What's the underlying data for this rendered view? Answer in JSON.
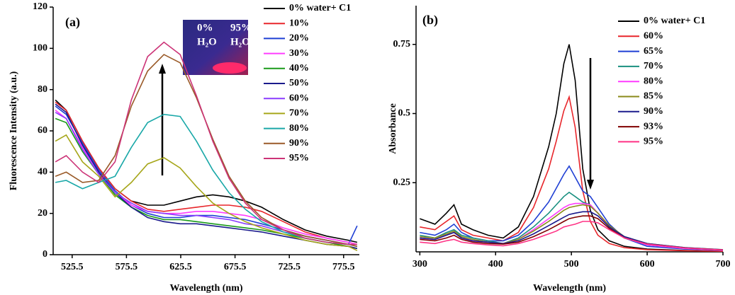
{
  "chart_data": [
    {
      "type": "line",
      "panel_label": "(a)",
      "x_label": "Wavelength (nm)",
      "y_label": "Fluorescence Intensity (a.u.)",
      "inset": {
        "left": [
          "0%",
          "H₂O"
        ],
        "right": [
          "95%",
          "H₂O"
        ]
      },
      "legend": "upper right",
      "xlim": [
        508,
        790
      ],
      "xticks": [
        525.5,
        575.5,
        625.5,
        675.5,
        725.5,
        775.5
      ],
      "ylim": [
        0,
        120
      ],
      "yticks": [
        0,
        20,
        40,
        60,
        80,
        100,
        120
      ],
      "x": [
        510,
        520,
        535,
        550,
        565,
        580,
        595,
        610,
        625,
        640,
        655,
        670,
        685,
        700,
        720,
        740,
        760,
        780,
        788
      ],
      "series": [
        {
          "name": "0% water+ C1",
          "color": "#000000",
          "values": [
            75,
            70,
            55,
            42,
            32,
            26,
            24,
            24,
            26,
            28,
            29,
            28,
            26,
            23,
            17,
            12,
            9,
            7,
            6
          ]
        },
        {
          "name": "10%",
          "color": "#e8262b",
          "values": [
            74,
            70,
            55,
            42,
            32,
            26,
            22,
            21,
            22,
            23,
            24,
            24,
            23,
            21,
            16,
            11,
            8,
            6,
            5
          ]
        },
        {
          "name": "20%",
          "color": "#1f3fd4",
          "values": [
            72,
            68,
            54,
            41,
            31,
            24,
            20,
            18,
            18,
            19,
            19,
            18,
            17,
            15,
            12,
            9,
            7,
            5,
            14
          ]
        },
        {
          "name": "30%",
          "color": "#ff3cff",
          "values": [
            70,
            66,
            52,
            40,
            30,
            24,
            21,
            20,
            20,
            21,
            21,
            20,
            19,
            17,
            13,
            10,
            8,
            6,
            5
          ]
        },
        {
          "name": "40%",
          "color": "#1a9a1a",
          "values": [
            66,
            64,
            50,
            39,
            29,
            23,
            19,
            17,
            17,
            16,
            15,
            14,
            13,
            12,
            10,
            8,
            6,
            4,
            3
          ]
        },
        {
          "name": "50%",
          "color": "#1a1a8c",
          "values": [
            73,
            69,
            53,
            40,
            30,
            23,
            18,
            16,
            15,
            15,
            14,
            13,
            12,
            11,
            9,
            7,
            5,
            4,
            3
          ]
        },
        {
          "name": "60%",
          "color": "#8a3cff",
          "values": [
            69,
            66,
            51,
            39,
            30,
            25,
            21,
            20,
            19,
            19,
            18,
            17,
            15,
            14,
            11,
            9,
            7,
            5,
            4
          ]
        },
        {
          "name": "70%",
          "color": "#a6a61a",
          "values": [
            55,
            58,
            45,
            38,
            28,
            35,
            44,
            47,
            42,
            33,
            25,
            20,
            16,
            13,
            10,
            7,
            5,
            4,
            2
          ]
        },
        {
          "name": "80%",
          "color": "#1aa8a8",
          "values": [
            35,
            36,
            32,
            35,
            38,
            52,
            64,
            68,
            67,
            55,
            41,
            30,
            22,
            16,
            11,
            8,
            6,
            5,
            4
          ]
        },
        {
          "name": "90%",
          "color": "#9a5a28",
          "values": [
            38,
            40,
            35,
            36,
            48,
            72,
            89,
            97,
            93,
            76,
            56,
            38,
            26,
            18,
            12,
            9,
            7,
            5,
            4
          ]
        },
        {
          "name": "95%",
          "color": "#cc3377",
          "values": [
            45,
            48,
            40,
            35,
            45,
            75,
            96,
            103,
            97,
            77,
            55,
            37,
            25,
            17,
            12,
            8,
            6,
            5,
            5
          ]
        }
      ]
    },
    {
      "type": "line",
      "panel_label": "(b)",
      "x_label": "Wavelength (nm)",
      "y_label": "Absorbance",
      "legend": "upper right",
      "xlim": [
        295,
        700
      ],
      "xticks": [
        300,
        400,
        500,
        600,
        700
      ],
      "ylim": [
        0,
        0.89
      ],
      "yticks": [
        0.25,
        0.5,
        0.75
      ],
      "x": [
        300,
        320,
        335,
        345,
        355,
        370,
        390,
        410,
        430,
        450,
        470,
        480,
        490,
        497,
        505,
        515,
        525,
        535,
        550,
        570,
        600,
        650,
        700
      ],
      "series": [
        {
          "name": "0% water+ C1",
          "color": "#000000",
          "values": [
            0.12,
            0.1,
            0.14,
            0.17,
            0.1,
            0.08,
            0.06,
            0.05,
            0.09,
            0.2,
            0.38,
            0.5,
            0.68,
            0.75,
            0.62,
            0.3,
            0.15,
            0.08,
            0.04,
            0.02,
            0.01,
            0.005,
            0.002
          ]
        },
        {
          "name": "60%",
          "color": "#e8262b",
          "values": [
            0.09,
            0.08,
            0.11,
            0.13,
            0.08,
            0.06,
            0.05,
            0.04,
            0.07,
            0.16,
            0.3,
            0.4,
            0.51,
            0.56,
            0.45,
            0.22,
            0.11,
            0.06,
            0.03,
            0.015,
            0.008,
            0.004,
            0.002
          ]
        },
        {
          "name": "65%",
          "color": "#1f3fd4",
          "values": [
            0.07,
            0.06,
            0.08,
            0.1,
            0.07,
            0.05,
            0.04,
            0.04,
            0.06,
            0.11,
            0.18,
            0.23,
            0.28,
            0.31,
            0.27,
            0.22,
            0.2,
            0.16,
            0.1,
            0.05,
            0.02,
            0.01,
            0.005
          ]
        },
        {
          "name": "70%",
          "color": "#1a9080",
          "values": [
            0.06,
            0.05,
            0.07,
            0.08,
            0.06,
            0.05,
            0.04,
            0.03,
            0.05,
            0.09,
            0.14,
            0.17,
            0.2,
            0.215,
            0.2,
            0.18,
            0.17,
            0.14,
            0.09,
            0.05,
            0.025,
            0.012,
            0.006
          ]
        },
        {
          "name": "80%",
          "color": "#ff3cff",
          "values": [
            0.05,
            0.045,
            0.06,
            0.07,
            0.05,
            0.04,
            0.035,
            0.03,
            0.045,
            0.08,
            0.12,
            0.14,
            0.16,
            0.17,
            0.175,
            0.175,
            0.17,
            0.14,
            0.09,
            0.05,
            0.025,
            0.012,
            0.006
          ]
        },
        {
          "name": "85%",
          "color": "#8a8a1a",
          "values": [
            0.055,
            0.05,
            0.065,
            0.075,
            0.055,
            0.045,
            0.035,
            0.03,
            0.045,
            0.075,
            0.11,
            0.13,
            0.15,
            0.16,
            0.165,
            0.17,
            0.165,
            0.14,
            0.095,
            0.055,
            0.03,
            0.015,
            0.008
          ]
        },
        {
          "name": "90%",
          "color": "#1a1a8c",
          "values": [
            0.05,
            0.045,
            0.06,
            0.07,
            0.05,
            0.04,
            0.035,
            0.03,
            0.04,
            0.065,
            0.095,
            0.11,
            0.125,
            0.135,
            0.14,
            0.145,
            0.145,
            0.13,
            0.09,
            0.055,
            0.03,
            0.015,
            0.008
          ]
        },
        {
          "name": "93%",
          "color": "#800000",
          "values": [
            0.045,
            0.04,
            0.05,
            0.06,
            0.045,
            0.035,
            0.03,
            0.028,
            0.035,
            0.055,
            0.08,
            0.095,
            0.11,
            0.12,
            0.125,
            0.13,
            0.13,
            0.12,
            0.085,
            0.05,
            0.028,
            0.014,
            0.007
          ]
        },
        {
          "name": "95%",
          "color": "#ff3385",
          "values": [
            0.035,
            0.03,
            0.04,
            0.045,
            0.035,
            0.03,
            0.025,
            0.022,
            0.03,
            0.045,
            0.065,
            0.075,
            0.09,
            0.095,
            0.1,
            0.11,
            0.11,
            0.105,
            0.08,
            0.05,
            0.028,
            0.014,
            0.007
          ]
        }
      ]
    }
  ]
}
